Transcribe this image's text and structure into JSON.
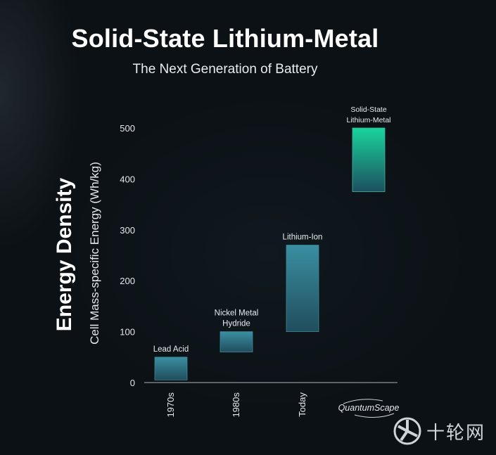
{
  "title": "Solid-State Lithium-Metal",
  "subtitle": "The Next Generation of Battery",
  "ylabel_main": "Energy Density",
  "ylabel_sub": "Cell Mass-specific Energy (Wh/kg)",
  "watermark": "十轮网",
  "chart_data": {
    "type": "bar",
    "subtype": "floating-range",
    "categories": [
      "1970s",
      "1980s",
      "Today",
      "QuantumScape"
    ],
    "bar_labels": [
      "Lead Acid",
      "Nickel Metal\nHydride",
      "Lithium-Ion",
      "Solid-State\nLithium-Metal"
    ],
    "ranges": [
      [
        5,
        50
      ],
      [
        60,
        100
      ],
      [
        100,
        270
      ],
      [
        375,
        500
      ]
    ],
    "ylim": [
      0,
      500
    ],
    "yticks": [
      0,
      100,
      200,
      300,
      400,
      500
    ],
    "grid": false,
    "colors": {
      "bar_top": "#3a8fa1",
      "bar_bottom": "#204d5d",
      "bar_top_final": "#19d49b",
      "bar_bottom_final": "#1c5060",
      "axis": "#8a9299"
    }
  }
}
